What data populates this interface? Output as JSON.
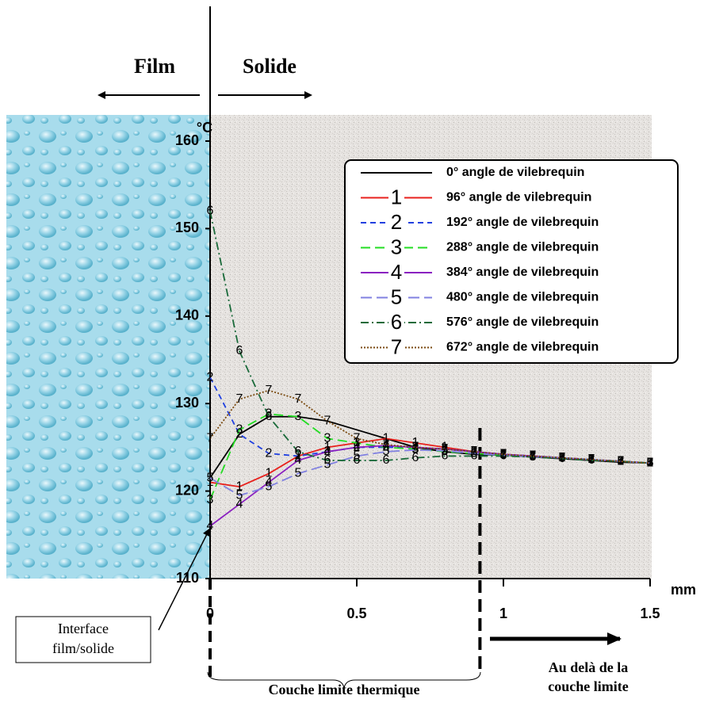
{
  "chart_data": {
    "type": "line",
    "x_unit": "mm",
    "y_unit": "°C",
    "x": [
      0,
      0.1,
      0.2,
      0.3,
      0.4,
      0.5,
      0.6,
      0.7,
      0.8,
      0.9,
      1.0,
      1.1,
      1.2,
      1.3,
      1.4,
      1.5
    ],
    "xlim": [
      0,
      1.5
    ],
    "xticks": [
      0,
      0.5,
      1,
      1.5
    ],
    "ylim": [
      110,
      160
    ],
    "yticks": [
      110,
      120,
      130,
      140,
      150,
      160
    ],
    "boundary": 0.92,
    "series": [
      {
        "name": "0° angle de vilebrequin",
        "color": "#000000",
        "dash": "none",
        "marker": null,
        "values": [
          121.5,
          126.5,
          128.5,
          128.5,
          128,
          127,
          126,
          125,
          124.5,
          124.2,
          124.1,
          123.9,
          123.7,
          123.5,
          123.3,
          123.2
        ]
      },
      {
        "name": "96° angle de vilebrequin",
        "color": "#e8201c",
        "dash": "none",
        "marker": "1",
        "values": [
          121,
          120.5,
          122,
          124,
          125,
          125.5,
          126,
          125.5,
          125,
          124.5,
          124.2,
          124,
          123.8,
          123.6,
          123.4,
          123.2
        ]
      },
      {
        "name": "192° angle de vilebrequin",
        "color": "#2040e0",
        "dash": "7,5",
        "marker": "2",
        "values": [
          133,
          126.5,
          124.3,
          124,
          124.5,
          125,
          125,
          125,
          124.8,
          124.5,
          124.2,
          124,
          123.8,
          123.6,
          123.4,
          123.2
        ]
      },
      {
        "name": "288° angle de vilebrequin",
        "color": "#22dd22",
        "dash": "12,6",
        "marker": "3",
        "values": [
          119,
          127,
          128.8,
          128.5,
          126,
          125.5,
          125,
          124.8,
          124.5,
          124.3,
          124.1,
          124,
          123.8,
          123.6,
          123.4,
          123.2
        ]
      },
      {
        "name": "384° angle de vilebrequin",
        "color": "#8a20c0",
        "dash": "none",
        "marker": "4",
        "values": [
          116,
          118.5,
          121,
          123.5,
          124.5,
          125,
          125.2,
          125,
          124.8,
          124.5,
          124.2,
          124,
          123.8,
          123.6,
          123.4,
          123.2
        ]
      },
      {
        "name": "480° angle de vilebrequin",
        "color": "#8080e0",
        "dash": "14,6",
        "marker": "5",
        "values": [
          121.5,
          119.5,
          120.5,
          122,
          123,
          124,
          124.5,
          124.7,
          124.6,
          124.3,
          124.1,
          123.9,
          123.8,
          123.6,
          123.4,
          123.2
        ]
      },
      {
        "name": "576° angle de vilebrequin",
        "color": "#1a6a3a",
        "dash": "10,4,2,4",
        "marker": "6",
        "values": [
          152,
          136,
          128.5,
          124.5,
          123.5,
          123.5,
          123.5,
          123.8,
          124,
          124,
          124,
          123.9,
          123.7,
          123.5,
          123.4,
          123.2
        ]
      },
      {
        "name": "672° angle de vilebrequin",
        "color": "#7a4a10",
        "dash": "2,2",
        "marker": "7",
        "values": [
          126,
          130.5,
          131.5,
          130.5,
          128,
          126,
          125.3,
          125,
          124.8,
          124.5,
          124.2,
          124,
          123.8,
          123.6,
          123.4,
          123.2
        ]
      }
    ],
    "annotations": {
      "film": "Film",
      "solide": "Solide",
      "interface": [
        "Interface",
        "film/solide"
      ],
      "couche": "Couche limite thermique",
      "au_dela": [
        "Au delà de la",
        "couche limite"
      ]
    }
  }
}
